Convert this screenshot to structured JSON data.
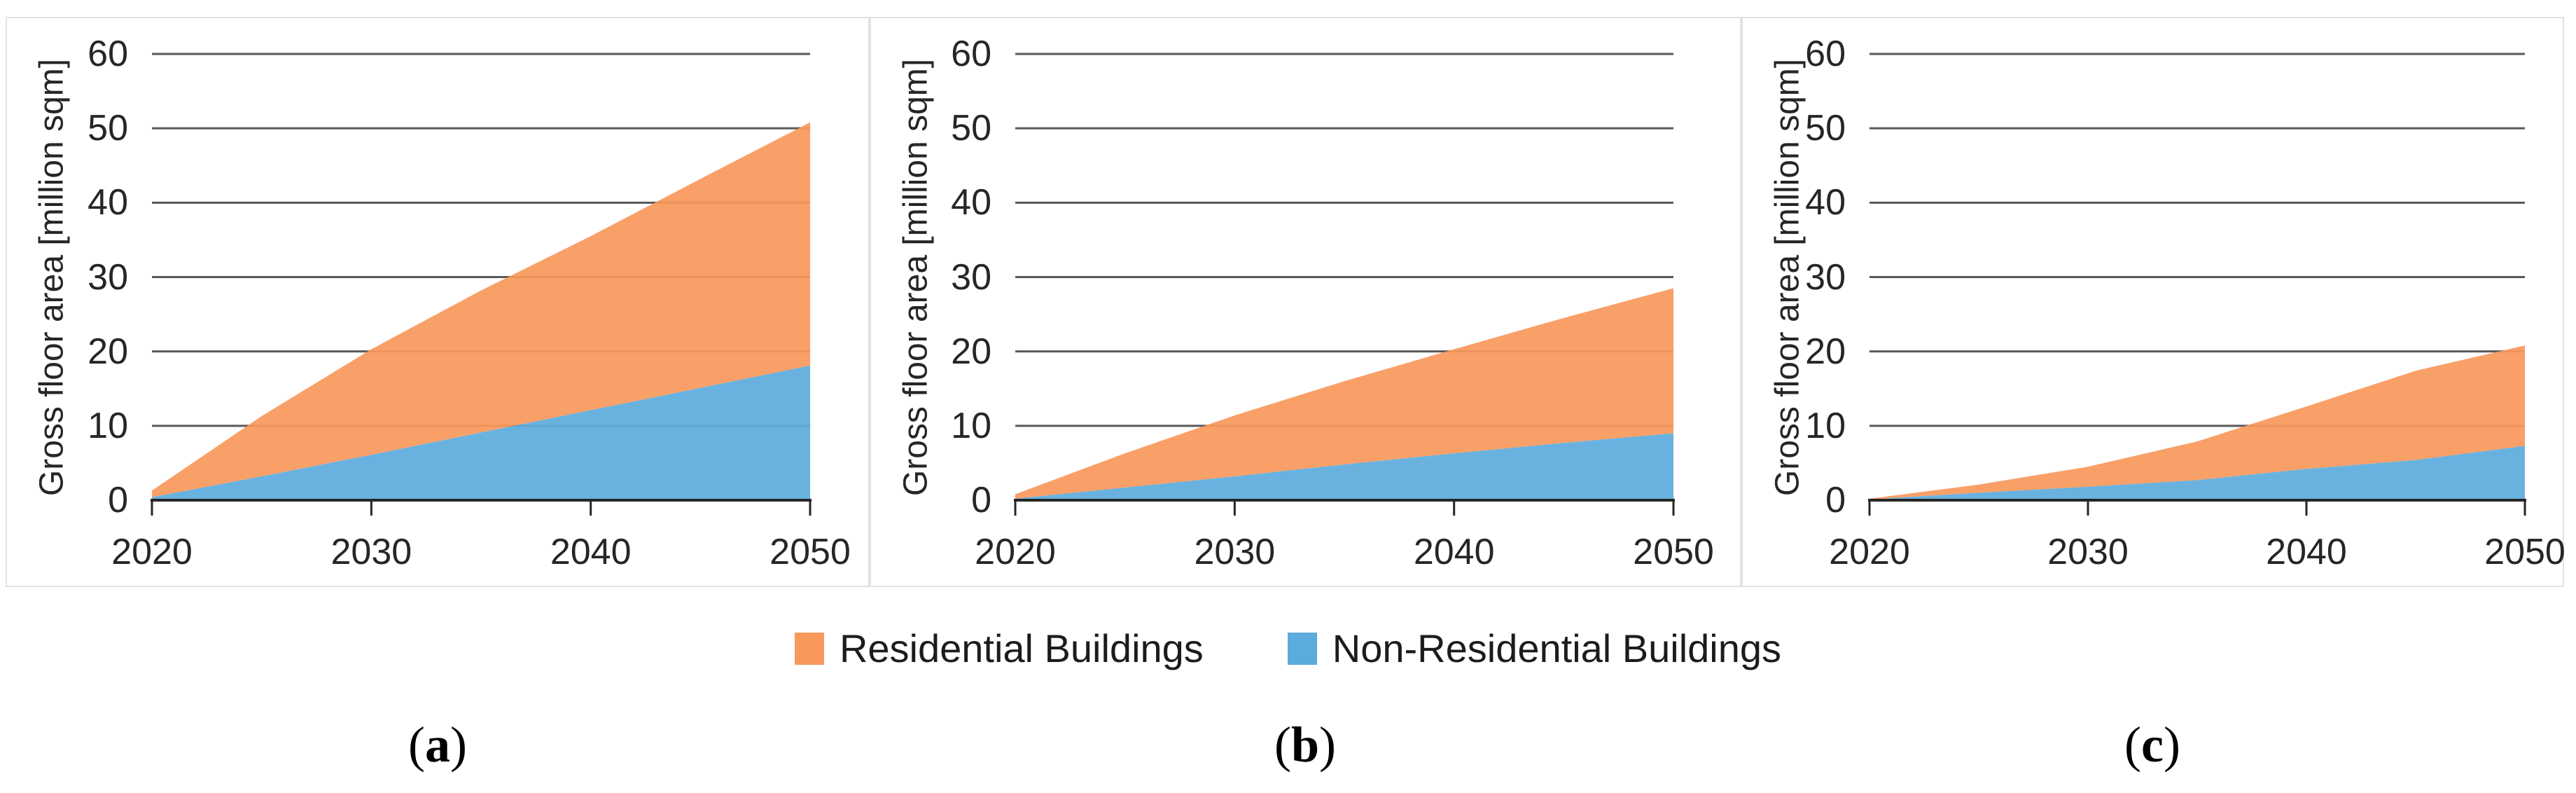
{
  "figure": {
    "background": "#ffffff",
    "panel_border_color": "#dfe2e6",
    "gridline_color": "#595959",
    "axis_color": "#262626",
    "text_color": "#1c1c1c"
  },
  "y_axis": {
    "title": "Gross floor area [million sqm]",
    "ticks": [
      0,
      10,
      20,
      30,
      40,
      50,
      60
    ],
    "range": [
      0,
      60
    ]
  },
  "x_axis": {
    "ticks": [
      2020,
      2030,
      2040,
      2050
    ],
    "range": [
      2020,
      2050
    ]
  },
  "legend": {
    "items": [
      {
        "label": "Residential Buildings",
        "color": "#F8985B"
      },
      {
        "label": "Non-Residential Buildings",
        "color": "#5CABDD"
      }
    ]
  },
  "captions": [
    {
      "text": "(a)",
      "letter": "a"
    },
    {
      "text": "(b)",
      "letter": "b"
    },
    {
      "text": "(c)",
      "letter": "c"
    }
  ],
  "chart_data": [
    {
      "panel": "a",
      "type": "area",
      "stacked": true,
      "title": "",
      "xlabel": "",
      "ylabel": "Gross floor area [million sqm]",
      "ylim": [
        0,
        60
      ],
      "xlim": [
        2020,
        2050
      ],
      "grid": true,
      "x": [
        2020,
        2025,
        2030,
        2035,
        2040,
        2045,
        2050
      ],
      "series": [
        {
          "name": "Non-Residential Buildings",
          "color": "#5CABDD",
          "values": [
            0.4,
            3.2,
            6.1,
            9.1,
            12.1,
            15.1,
            18.1
          ]
        },
        {
          "name": "Residential Buildings",
          "color": "#F8985B",
          "values": [
            0.9,
            8.1,
            14.2,
            19.1,
            23.4,
            28.1,
            32.7
          ]
        }
      ],
      "totals": [
        1.3,
        11.3,
        20.3,
        28.2,
        35.5,
        43.2,
        50.8
      ]
    },
    {
      "panel": "b",
      "type": "area",
      "stacked": true,
      "title": "",
      "xlabel": "",
      "ylabel": "Gross floor area [million sqm]",
      "ylim": [
        0,
        60
      ],
      "xlim": [
        2020,
        2050
      ],
      "grid": true,
      "x": [
        2020,
        2025,
        2030,
        2035,
        2040,
        2045,
        2050
      ],
      "series": [
        {
          "name": "Non-Residential Buildings",
          "color": "#5CABDD",
          "values": [
            0.2,
            1.7,
            3.2,
            4.8,
            6.3,
            7.7,
            9.0
          ]
        },
        {
          "name": "Residential Buildings",
          "color": "#F8985B",
          "values": [
            0.6,
            4.6,
            8.2,
            11.2,
            14.0,
            16.8,
            19.5
          ]
        }
      ],
      "totals": [
        0.8,
        6.3,
        11.4,
        16.0,
        20.3,
        24.5,
        28.5
      ]
    },
    {
      "panel": "c",
      "type": "area",
      "stacked": true,
      "title": "",
      "xlabel": "",
      "ylabel": "Gross floor area [million sqm]",
      "ylim": [
        0,
        60
      ],
      "xlim": [
        2020,
        2050
      ],
      "grid": true,
      "x": [
        2020,
        2025,
        2030,
        2035,
        2040,
        2045,
        2050
      ],
      "series": [
        {
          "name": "Non-Residential Buildings",
          "color": "#5CABDD",
          "values": [
            0.1,
            1.0,
            1.8,
            2.7,
            4.2,
            5.4,
            7.3
          ]
        },
        {
          "name": "Residential Buildings",
          "color": "#F8985B",
          "values": [
            0.1,
            1.1,
            2.7,
            5.2,
            8.4,
            12.0,
            13.5
          ]
        }
      ],
      "totals": [
        0.2,
        2.1,
        4.5,
        7.9,
        12.6,
        17.4,
        20.8
      ]
    }
  ]
}
